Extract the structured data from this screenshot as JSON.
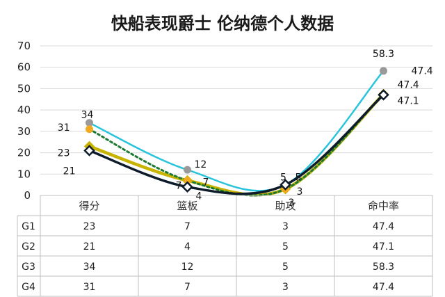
{
  "chart_data": {
    "type": "line",
    "title": "快船表现爵士 伦纳德个人数据",
    "categories": [
      "得分",
      "篮板",
      "助攻",
      "命中率"
    ],
    "ylim": [
      0,
      70
    ],
    "yticks": [
      0,
      10,
      20,
      30,
      40,
      50,
      60,
      70
    ],
    "grid": true,
    "series": [
      {
        "name": "G1",
        "values": [
          23,
          7,
          3,
          47.4
        ],
        "color": "#c8b400",
        "marker": "diamond"
      },
      {
        "name": "G2",
        "values": [
          21,
          4,
          5,
          47.1
        ],
        "color": "#0d1b2a",
        "marker": "diamond-open"
      },
      {
        "name": "G3",
        "values": [
          34,
          12,
          5,
          58.3
        ],
        "color": "#29c4dc",
        "marker": "circle-gray"
      },
      {
        "name": "G4",
        "values": [
          31,
          7,
          3,
          47.4
        ],
        "color": "#1e7a32",
        "marker": "circle-orange",
        "dash": true
      }
    ],
    "table": {
      "headers": [
        "得分",
        "篮板",
        "助攻",
        "命中率"
      ],
      "rows": [
        {
          "label": "G1",
          "cells": [
            "23",
            "7",
            "3",
            "47.4"
          ]
        },
        {
          "label": "G2",
          "cells": [
            "21",
            "4",
            "5",
            "47.1"
          ]
        },
        {
          "label": "G3",
          "cells": [
            "34",
            "12",
            "5",
            "58.3"
          ]
        },
        {
          "label": "G4",
          "cells": [
            "31",
            "7",
            "3",
            "47.4"
          ]
        }
      ]
    }
  }
}
